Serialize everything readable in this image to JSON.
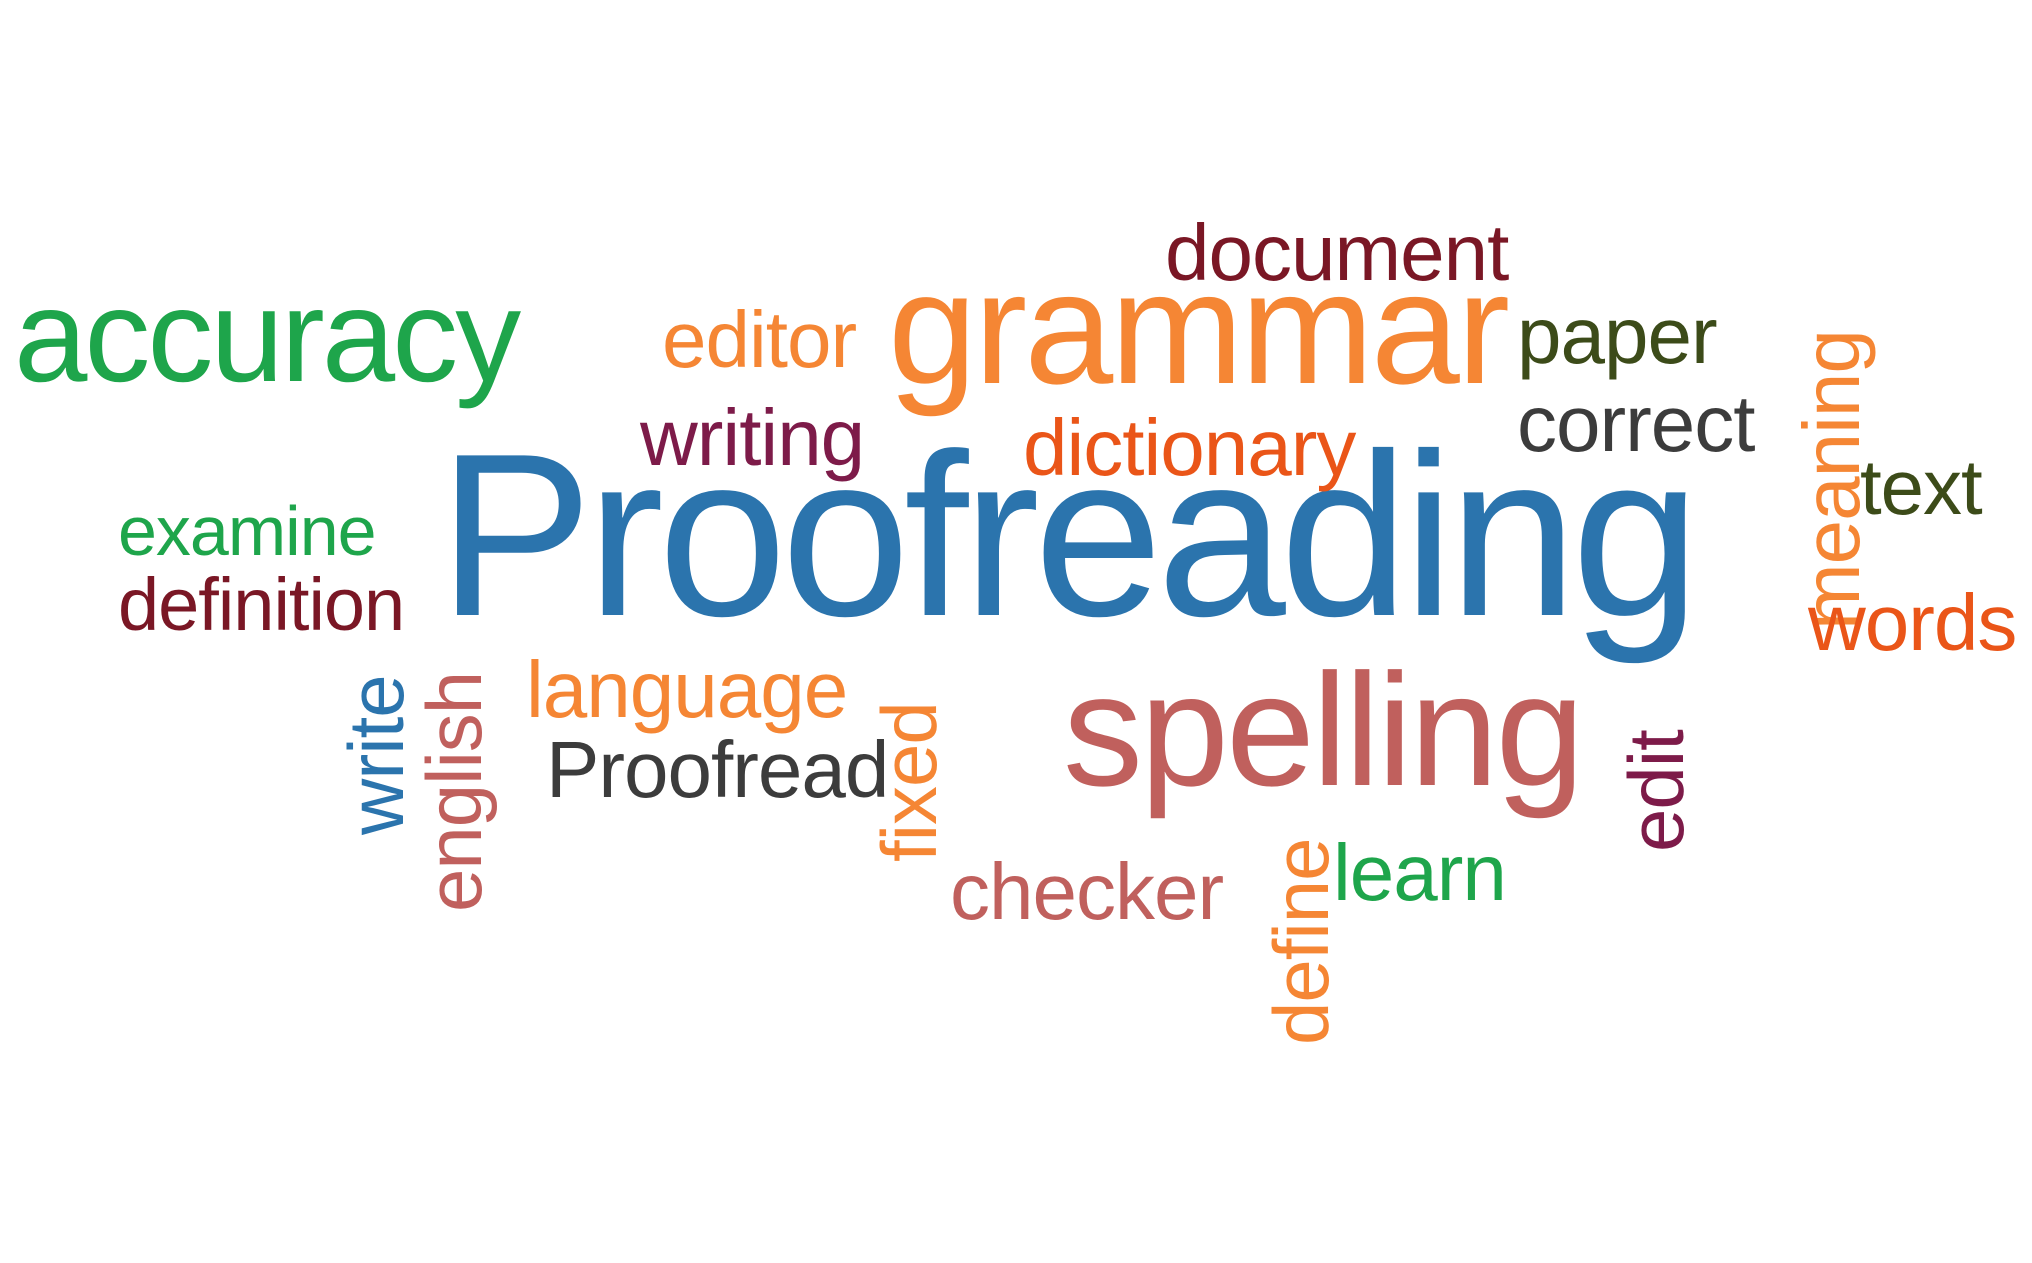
{
  "words": {
    "proofreading": {
      "text": "Proofreading",
      "color": "#2b74ad"
    },
    "grammar": {
      "text": "grammar",
      "color": "#f58634"
    },
    "accuracy": {
      "text": "accuracy",
      "color": "#1ea54b"
    },
    "spelling": {
      "text": "spelling",
      "color": "#c0605d"
    },
    "document": {
      "text": "document",
      "color": "#7a1725"
    },
    "editor": {
      "text": "editor",
      "color": "#f58634"
    },
    "paper": {
      "text": "paper",
      "color": "#3c4b19"
    },
    "writing": {
      "text": "writing",
      "color": "#7d1b49"
    },
    "dictionary": {
      "text": "dictionary",
      "color": "#ea5518"
    },
    "correct": {
      "text": "correct",
      "color": "#3c3c3c"
    },
    "meaning": {
      "text": "meaning",
      "color": "#f58634"
    },
    "text": {
      "text": "text",
      "color": "#3c4b19"
    },
    "examine": {
      "text": "examine",
      "color": "#1ea54b"
    },
    "definition": {
      "text": "definition",
      "color": "#7a1725"
    },
    "words": {
      "text": "words",
      "color": "#ea5518"
    },
    "write": {
      "text": "write",
      "color": "#2b74ad"
    },
    "english": {
      "text": "english",
      "color": "#c0605d"
    },
    "language": {
      "text": "language",
      "color": "#f58634"
    },
    "proofread": {
      "text": "Proofread",
      "color": "#3c3c3c"
    },
    "fixed": {
      "text": "fixed",
      "color": "#f58634"
    },
    "checker": {
      "text": "checker",
      "color": "#c0605d"
    },
    "define": {
      "text": "define",
      "color": "#f58634"
    },
    "learn": {
      "text": "learn",
      "color": "#1ea54b"
    },
    "edit": {
      "text": "edit",
      "color": "#7d1b49"
    }
  }
}
